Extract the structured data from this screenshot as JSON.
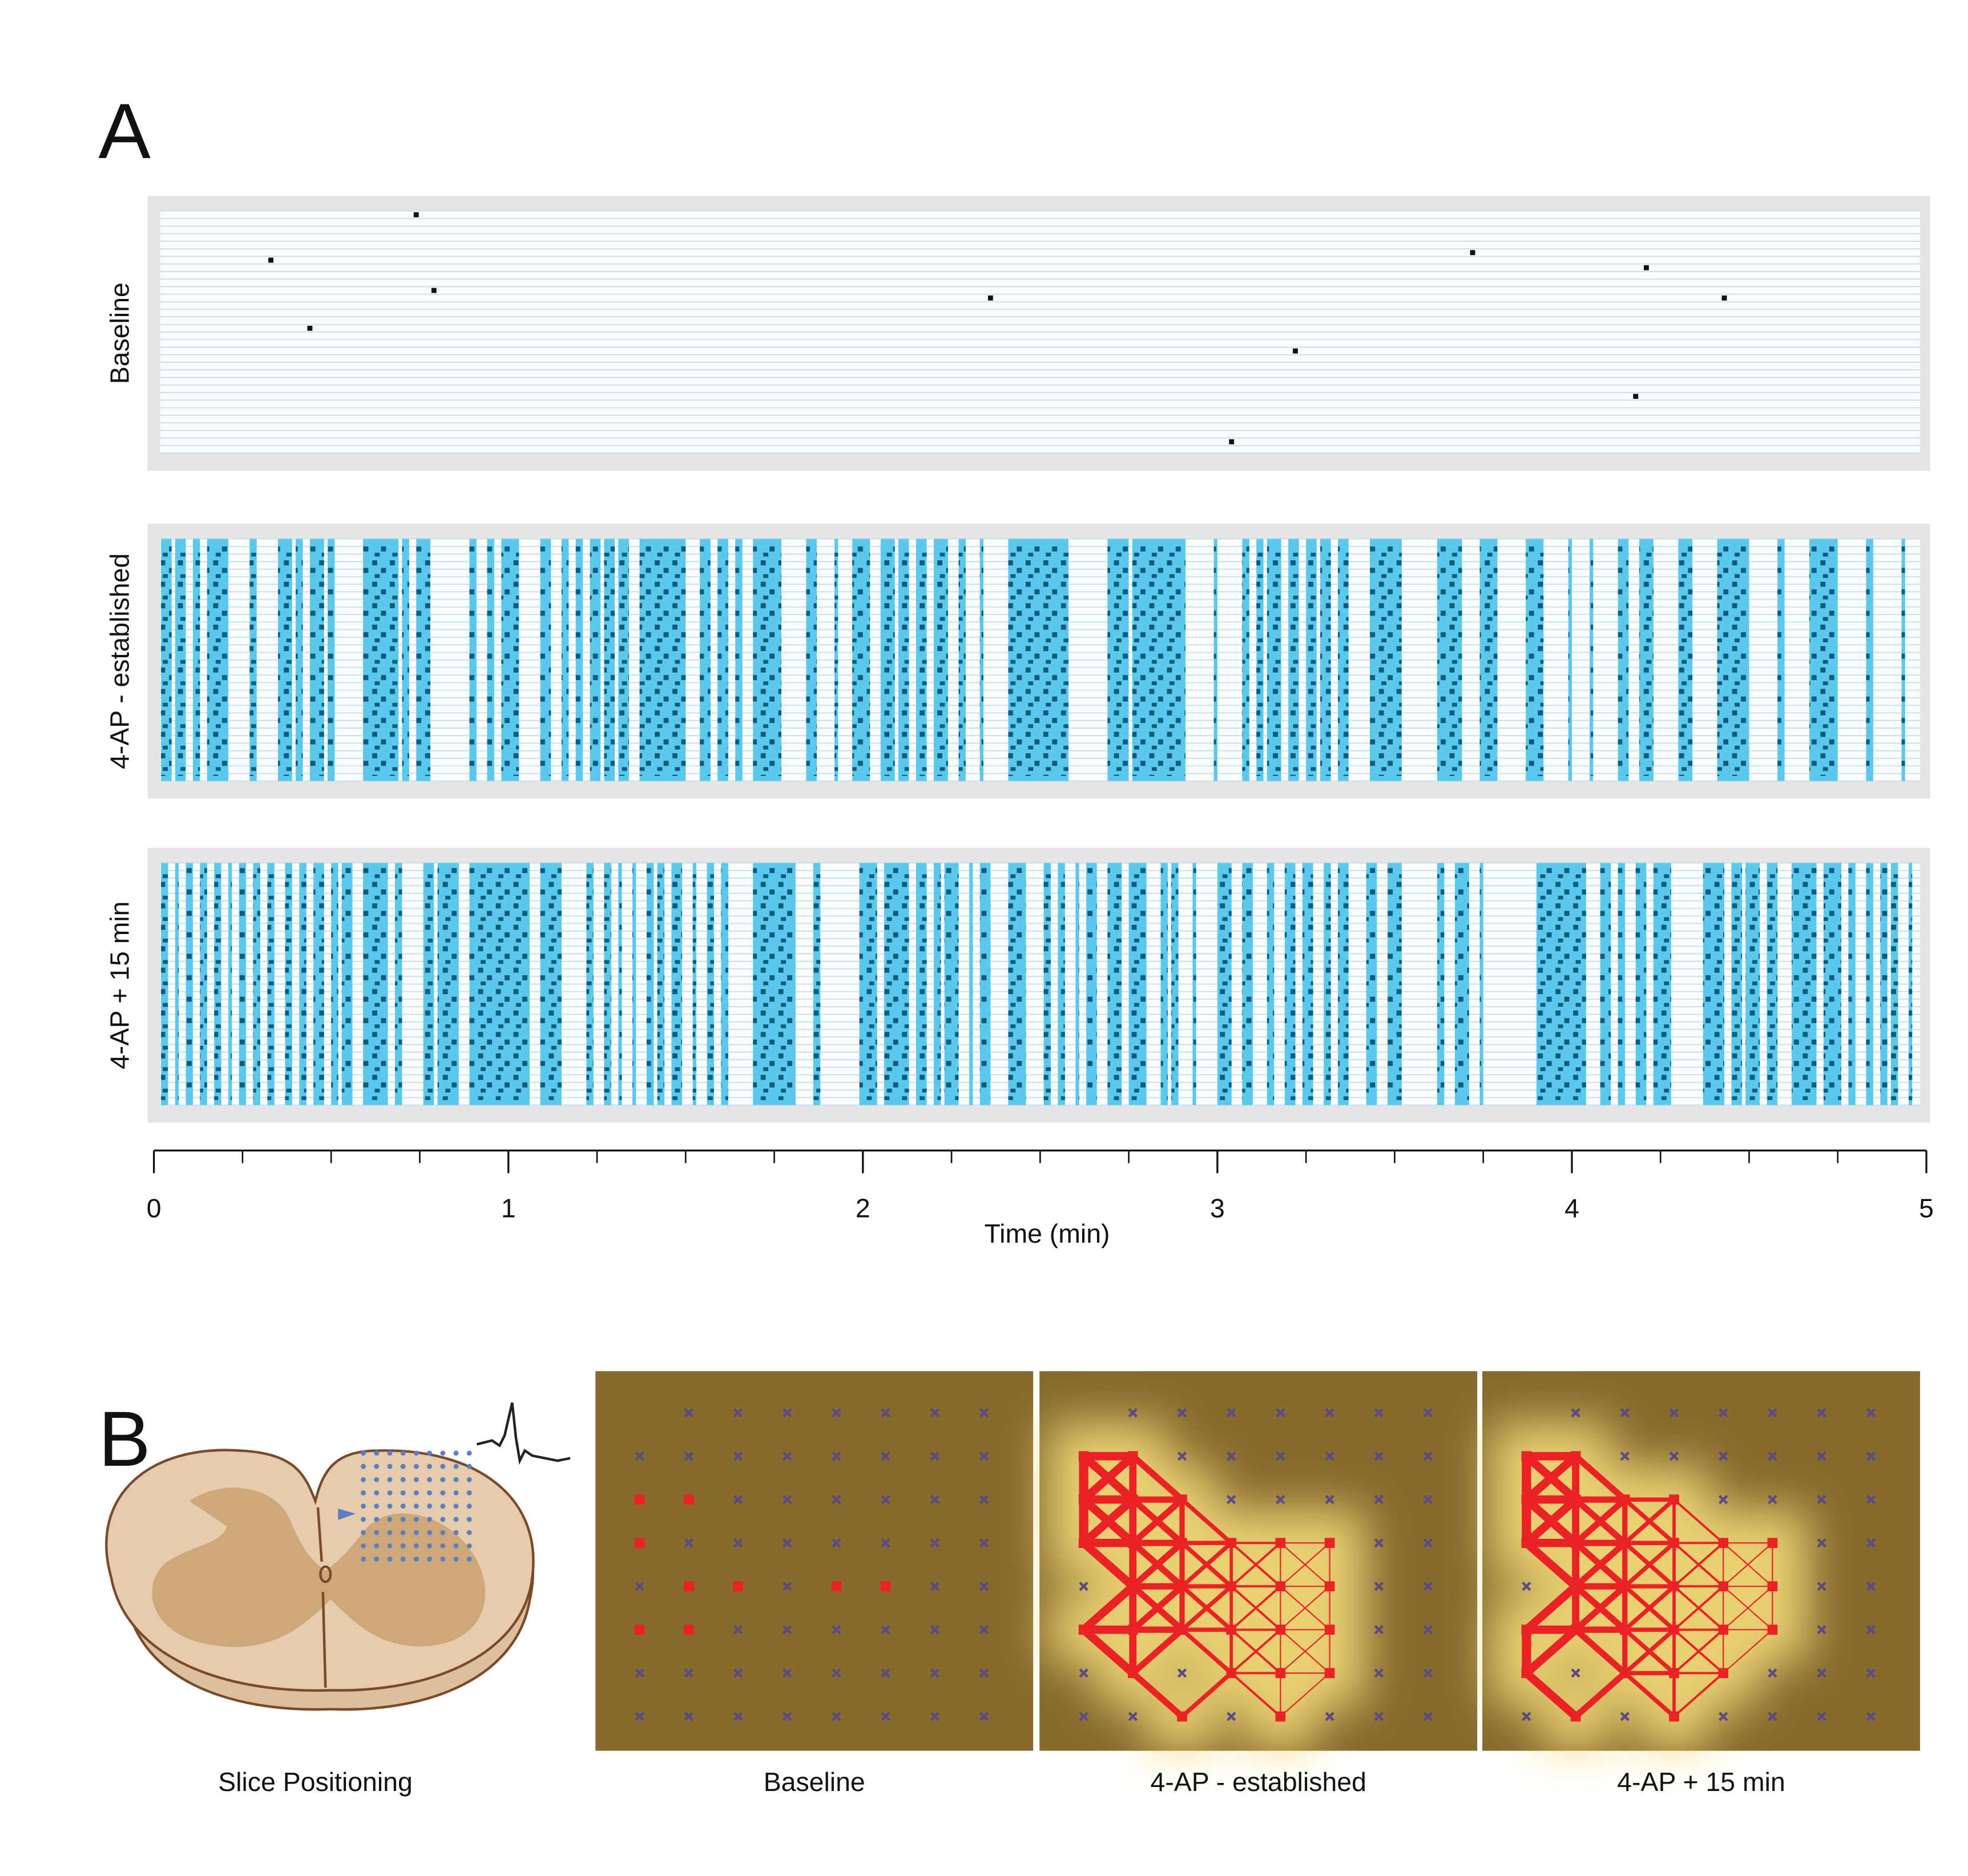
{
  "figure": {
    "labels": [
      "A",
      "B"
    ]
  },
  "time_axis": {
    "xlabel": "Time (min)",
    "xlim": [
      0,
      5
    ],
    "xticks": [
      0,
      1,
      2,
      3,
      4,
      5
    ],
    "xminorticks": [
      0.25,
      0.5,
      0.75,
      1.25,
      1.5,
      1.75,
      2.25,
      2.5,
      2.75,
      3.25,
      3.5,
      3.75,
      4.25,
      4.5,
      4.75
    ]
  },
  "chart_data": [
    {
      "type": "raster",
      "ylabel": "Baseline",
      "color": "#111111",
      "spikes": {
        "x": [
          0.74,
          0.33,
          0.79,
          0.44,
          2.36,
          3.72,
          4.21,
          4.43,
          3.22,
          4.18,
          3.04
        ],
        "rows": [
          0,
          6,
          10,
          15,
          11,
          5,
          7,
          11,
          18,
          24,
          30
        ]
      }
    },
    {
      "type": "raster",
      "ylabel": "4-AP - established",
      "color": "#5bc8ee",
      "bursts": [
        [
          0.02,
          0.05
        ],
        [
          0.06,
          0.09
        ],
        [
          0.11,
          0.13
        ],
        [
          0.15,
          0.21
        ],
        [
          0.27,
          0.29
        ],
        [
          0.35,
          0.39
        ],
        [
          0.4,
          0.42
        ],
        [
          0.44,
          0.48
        ],
        [
          0.49,
          0.51
        ],
        [
          0.59,
          0.69
        ],
        [
          0.7,
          0.72
        ],
        [
          0.74,
          0.78
        ],
        [
          0.89,
          0.91
        ],
        [
          0.94,
          0.96
        ],
        [
          0.98,
          1.03
        ],
        [
          1.09,
          1.12
        ],
        [
          1.15,
          1.17
        ],
        [
          1.19,
          1.21
        ],
        [
          1.23,
          1.26
        ],
        [
          1.27,
          1.3
        ],
        [
          1.31,
          1.34
        ],
        [
          1.37,
          1.5
        ],
        [
          1.54,
          1.57
        ],
        [
          1.59,
          1.62
        ],
        [
          1.64,
          1.66
        ],
        [
          1.69,
          1.77
        ],
        [
          1.84,
          1.87
        ],
        [
          1.92,
          1.93
        ],
        [
          1.97,
          2.02
        ],
        [
          2.05,
          2.09
        ],
        [
          2.1,
          2.13
        ],
        [
          2.15,
          2.18
        ],
        [
          2.2,
          2.24
        ],
        [
          2.27,
          2.29
        ],
        [
          2.33,
          2.34
        ],
        [
          2.41,
          2.58
        ],
        [
          2.69,
          2.75
        ],
        [
          2.76,
          2.91
        ],
        [
          2.99,
          3.0
        ],
        [
          3.07,
          3.09
        ],
        [
          3.11,
          3.13
        ],
        [
          3.14,
          3.18
        ],
        [
          3.2,
          3.23
        ],
        [
          3.25,
          3.28
        ],
        [
          3.29,
          3.32
        ],
        [
          3.34,
          3.37
        ],
        [
          3.43,
          3.52
        ],
        [
          3.62,
          3.69
        ],
        [
          3.74,
          3.79
        ],
        [
          3.87,
          3.92
        ],
        [
          3.99,
          4.0
        ],
        [
          4.05,
          4.06
        ],
        [
          4.13,
          4.16
        ],
        [
          4.19,
          4.23
        ],
        [
          4.3,
          4.34
        ],
        [
          4.41,
          4.5
        ],
        [
          4.58,
          4.6
        ],
        [
          4.67,
          4.75
        ],
        [
          4.83,
          4.85
        ],
        [
          4.93,
          4.94
        ]
      ]
    },
    {
      "type": "raster",
      "ylabel": "4-AP  + 15 min",
      "color": "#5bc8ee",
      "bursts": [
        [
          0.02,
          0.04
        ],
        [
          0.06,
          0.07
        ],
        [
          0.09,
          0.11
        ],
        [
          0.13,
          0.15
        ],
        [
          0.17,
          0.19
        ],
        [
          0.21,
          0.22
        ],
        [
          0.24,
          0.26
        ],
        [
          0.28,
          0.3
        ],
        [
          0.32,
          0.34
        ],
        [
          0.37,
          0.39
        ],
        [
          0.41,
          0.43
        ],
        [
          0.45,
          0.48
        ],
        [
          0.5,
          0.52
        ],
        [
          0.53,
          0.56
        ],
        [
          0.59,
          0.66
        ],
        [
          0.68,
          0.7
        ],
        [
          0.76,
          0.79
        ],
        [
          0.8,
          0.86
        ],
        [
          0.89,
          1.06
        ],
        [
          1.09,
          1.15
        ],
        [
          1.22,
          1.24
        ],
        [
          1.27,
          1.29
        ],
        [
          1.31,
          1.32
        ],
        [
          1.35,
          1.36
        ],
        [
          1.39,
          1.41
        ],
        [
          1.42,
          1.44
        ],
        [
          1.46,
          1.49
        ],
        [
          1.52,
          1.53
        ],
        [
          1.56,
          1.58
        ],
        [
          1.6,
          1.62
        ],
        [
          1.69,
          1.81
        ],
        [
          1.86,
          1.88
        ],
        [
          1.99,
          2.04
        ],
        [
          2.06,
          2.13
        ],
        [
          2.15,
          2.18
        ],
        [
          2.2,
          2.22
        ],
        [
          2.23,
          2.27
        ],
        [
          2.3,
          2.31
        ],
        [
          2.33,
          2.36
        ],
        [
          2.41,
          2.46
        ],
        [
          2.51,
          2.53
        ],
        [
          2.55,
          2.57
        ],
        [
          2.6,
          2.61
        ],
        [
          2.63,
          2.66
        ],
        [
          2.69,
          2.73
        ],
        [
          2.75,
          2.8
        ],
        [
          2.84,
          2.86
        ],
        [
          2.87,
          2.89
        ],
        [
          2.93,
          2.94
        ],
        [
          3.0,
          3.04
        ],
        [
          3.07,
          3.1
        ],
        [
          3.14,
          3.16
        ],
        [
          3.19,
          3.22
        ],
        [
          3.24,
          3.27
        ],
        [
          3.3,
          3.32
        ],
        [
          3.34,
          3.37
        ],
        [
          3.42,
          3.45
        ],
        [
          3.48,
          3.52
        ],
        [
          3.62,
          3.64
        ],
        [
          3.67,
          3.71
        ],
        [
          3.74,
          3.75
        ],
        [
          3.9,
          4.04
        ],
        [
          4.08,
          4.11
        ],
        [
          4.13,
          4.15
        ],
        [
          4.18,
          4.21
        ],
        [
          4.23,
          4.28
        ],
        [
          4.37,
          4.43
        ],
        [
          4.45,
          4.48
        ],
        [
          4.49,
          4.53
        ],
        [
          4.55,
          4.58
        ],
        [
          4.62,
          4.69
        ],
        [
          4.71,
          4.76
        ],
        [
          4.78,
          4.8
        ],
        [
          4.83,
          4.85
        ],
        [
          4.87,
          4.89
        ],
        [
          4.9,
          4.92
        ],
        [
          4.95,
          4.96
        ]
      ]
    }
  ],
  "panel_b": {
    "slice_caption": "Slice Positioning",
    "maps": [
      {
        "caption": "Baseline",
        "active": [
          [
            0,
            2
          ],
          [
            1,
            2
          ],
          [
            0,
            3
          ],
          [
            1,
            4
          ],
          [
            2,
            4
          ],
          [
            4,
            4
          ],
          [
            5,
            4
          ],
          [
            0,
            5
          ],
          [
            1,
            5
          ]
        ]
      },
      {
        "caption": "4-AP - established",
        "active": [
          [
            0,
            1
          ],
          [
            1,
            1
          ],
          [
            0,
            2
          ],
          [
            1,
            2
          ],
          [
            2,
            2
          ],
          [
            0,
            3
          ],
          [
            1,
            3
          ],
          [
            2,
            3
          ],
          [
            3,
            3
          ],
          [
            4,
            3
          ],
          [
            5,
            3
          ],
          [
            1,
            4
          ],
          [
            2,
            4
          ],
          [
            3,
            4
          ],
          [
            4,
            4
          ],
          [
            5,
            4
          ],
          [
            0,
            5
          ],
          [
            1,
            5
          ],
          [
            2,
            5
          ],
          [
            3,
            5
          ],
          [
            4,
            5
          ],
          [
            5,
            5
          ],
          [
            1,
            6
          ],
          [
            3,
            6
          ],
          [
            4,
            6
          ],
          [
            5,
            6
          ],
          [
            2,
            7
          ],
          [
            4,
            7
          ]
        ]
      },
      {
        "caption": "4-AP + 15 min",
        "active": [
          [
            0,
            1
          ],
          [
            1,
            1
          ],
          [
            0,
            2
          ],
          [
            1,
            2
          ],
          [
            2,
            2
          ],
          [
            3,
            2
          ],
          [
            0,
            3
          ],
          [
            1,
            3
          ],
          [
            2,
            3
          ],
          [
            3,
            3
          ],
          [
            4,
            3
          ],
          [
            5,
            3
          ],
          [
            1,
            4
          ],
          [
            2,
            4
          ],
          [
            3,
            4
          ],
          [
            4,
            4
          ],
          [
            5,
            4
          ],
          [
            0,
            5
          ],
          [
            1,
            5
          ],
          [
            2,
            5
          ],
          [
            3,
            5
          ],
          [
            4,
            5
          ],
          [
            5,
            5
          ],
          [
            0,
            6
          ],
          [
            2,
            6
          ],
          [
            3,
            6
          ],
          [
            4,
            6
          ],
          [
            1,
            7
          ],
          [
            3,
            7
          ]
        ]
      }
    ]
  }
}
